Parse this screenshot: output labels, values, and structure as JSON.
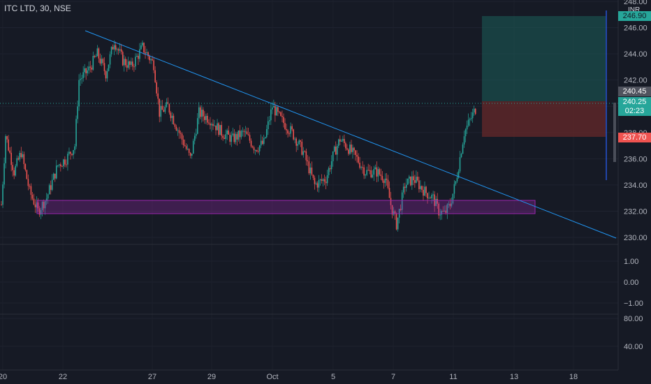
{
  "title": "ITC LTD, 30, NSE",
  "currency": "INR",
  "colors": {
    "background": "#161a25",
    "up": "#26a69a",
    "down": "#ef5350",
    "trendline": "#2196f3",
    "zone": "#9c27b0",
    "target": "#1b5e5a",
    "stop": "#6b2a2a"
  },
  "price_scale": {
    "ticks": [
      "248.00",
      "246.00",
      "244.00",
      "242.00",
      "240.00",
      "238.00",
      "236.00",
      "234.00",
      "232.00",
      "230.00"
    ]
  },
  "badges": {
    "target": "246.90",
    "entry": "240.45",
    "last": "240.25",
    "countdown": "02:23",
    "stop": "237.70"
  },
  "indicator1": {
    "ticks": [
      "1.00",
      "0.00",
      "−1.00"
    ]
  },
  "indicator2": {
    "ticks": [
      "80.00",
      "40.00"
    ]
  },
  "time_axis": {
    "labels": [
      "20",
      "22",
      "27",
      "29",
      "Oct",
      "5",
      "7",
      "11",
      "13",
      "18"
    ]
  },
  "chart_data": {
    "type": "candlestick",
    "title": "ITC LTD, 30, NSE",
    "y_range": [
      229,
      248.5
    ],
    "close_path": [
      [
        0,
        232.5
      ],
      [
        3,
        237.8
      ],
      [
        9,
        235.0
      ],
      [
        14,
        236.5
      ],
      [
        20,
        233.5
      ],
      [
        26,
        232.0
      ],
      [
        32,
        233.0
      ],
      [
        40,
        235.5
      ],
      [
        46,
        236.0
      ],
      [
        52,
        237.0
      ],
      [
        55,
        242.0
      ],
      [
        62,
        242.8
      ],
      [
        68,
        244.0
      ],
      [
        74,
        242.5
      ],
      [
        80,
        245.0
      ],
      [
        86,
        243.5
      ],
      [
        92,
        243.0
      ],
      [
        100,
        244.5
      ],
      [
        108,
        243.2
      ],
      [
        112,
        239.5
      ],
      [
        118,
        240.0
      ],
      [
        126,
        238.0
      ],
      [
        134,
        236.0
      ],
      [
        140,
        239.5
      ],
      [
        148,
        239.0
      ],
      [
        156,
        238.0
      ],
      [
        164,
        237.5
      ],
      [
        172,
        238.0
      ],
      [
        180,
        236.8
      ],
      [
        186,
        237.2
      ],
      [
        192,
        240.0
      ],
      [
        198,
        239.0
      ],
      [
        206,
        238.0
      ],
      [
        214,
        236.5
      ],
      [
        222,
        234.0
      ],
      [
        230,
        234.5
      ],
      [
        236,
        236.5
      ],
      [
        240,
        237.5
      ],
      [
        246,
        236.8
      ],
      [
        252,
        236.0
      ],
      [
        258,
        235.0
      ],
      [
        266,
        235.0
      ],
      [
        272,
        234.5
      ],
      [
        276,
        232.5
      ],
      [
        280,
        231.0
      ],
      [
        286,
        234.0
      ],
      [
        292,
        234.5
      ],
      [
        300,
        233.5
      ],
      [
        306,
        233.0
      ],
      [
        310,
        232.0
      ],
      [
        314,
        231.8
      ],
      [
        318,
        232.5
      ],
      [
        322,
        234.2
      ],
      [
        328,
        238.0
      ],
      [
        336,
        239.8
      ]
    ],
    "annotations": [
      "descending trendline",
      "support zone 232.0–232.7",
      "long position: entry 240.45, target 246.90, stop 237.70"
    ]
  }
}
